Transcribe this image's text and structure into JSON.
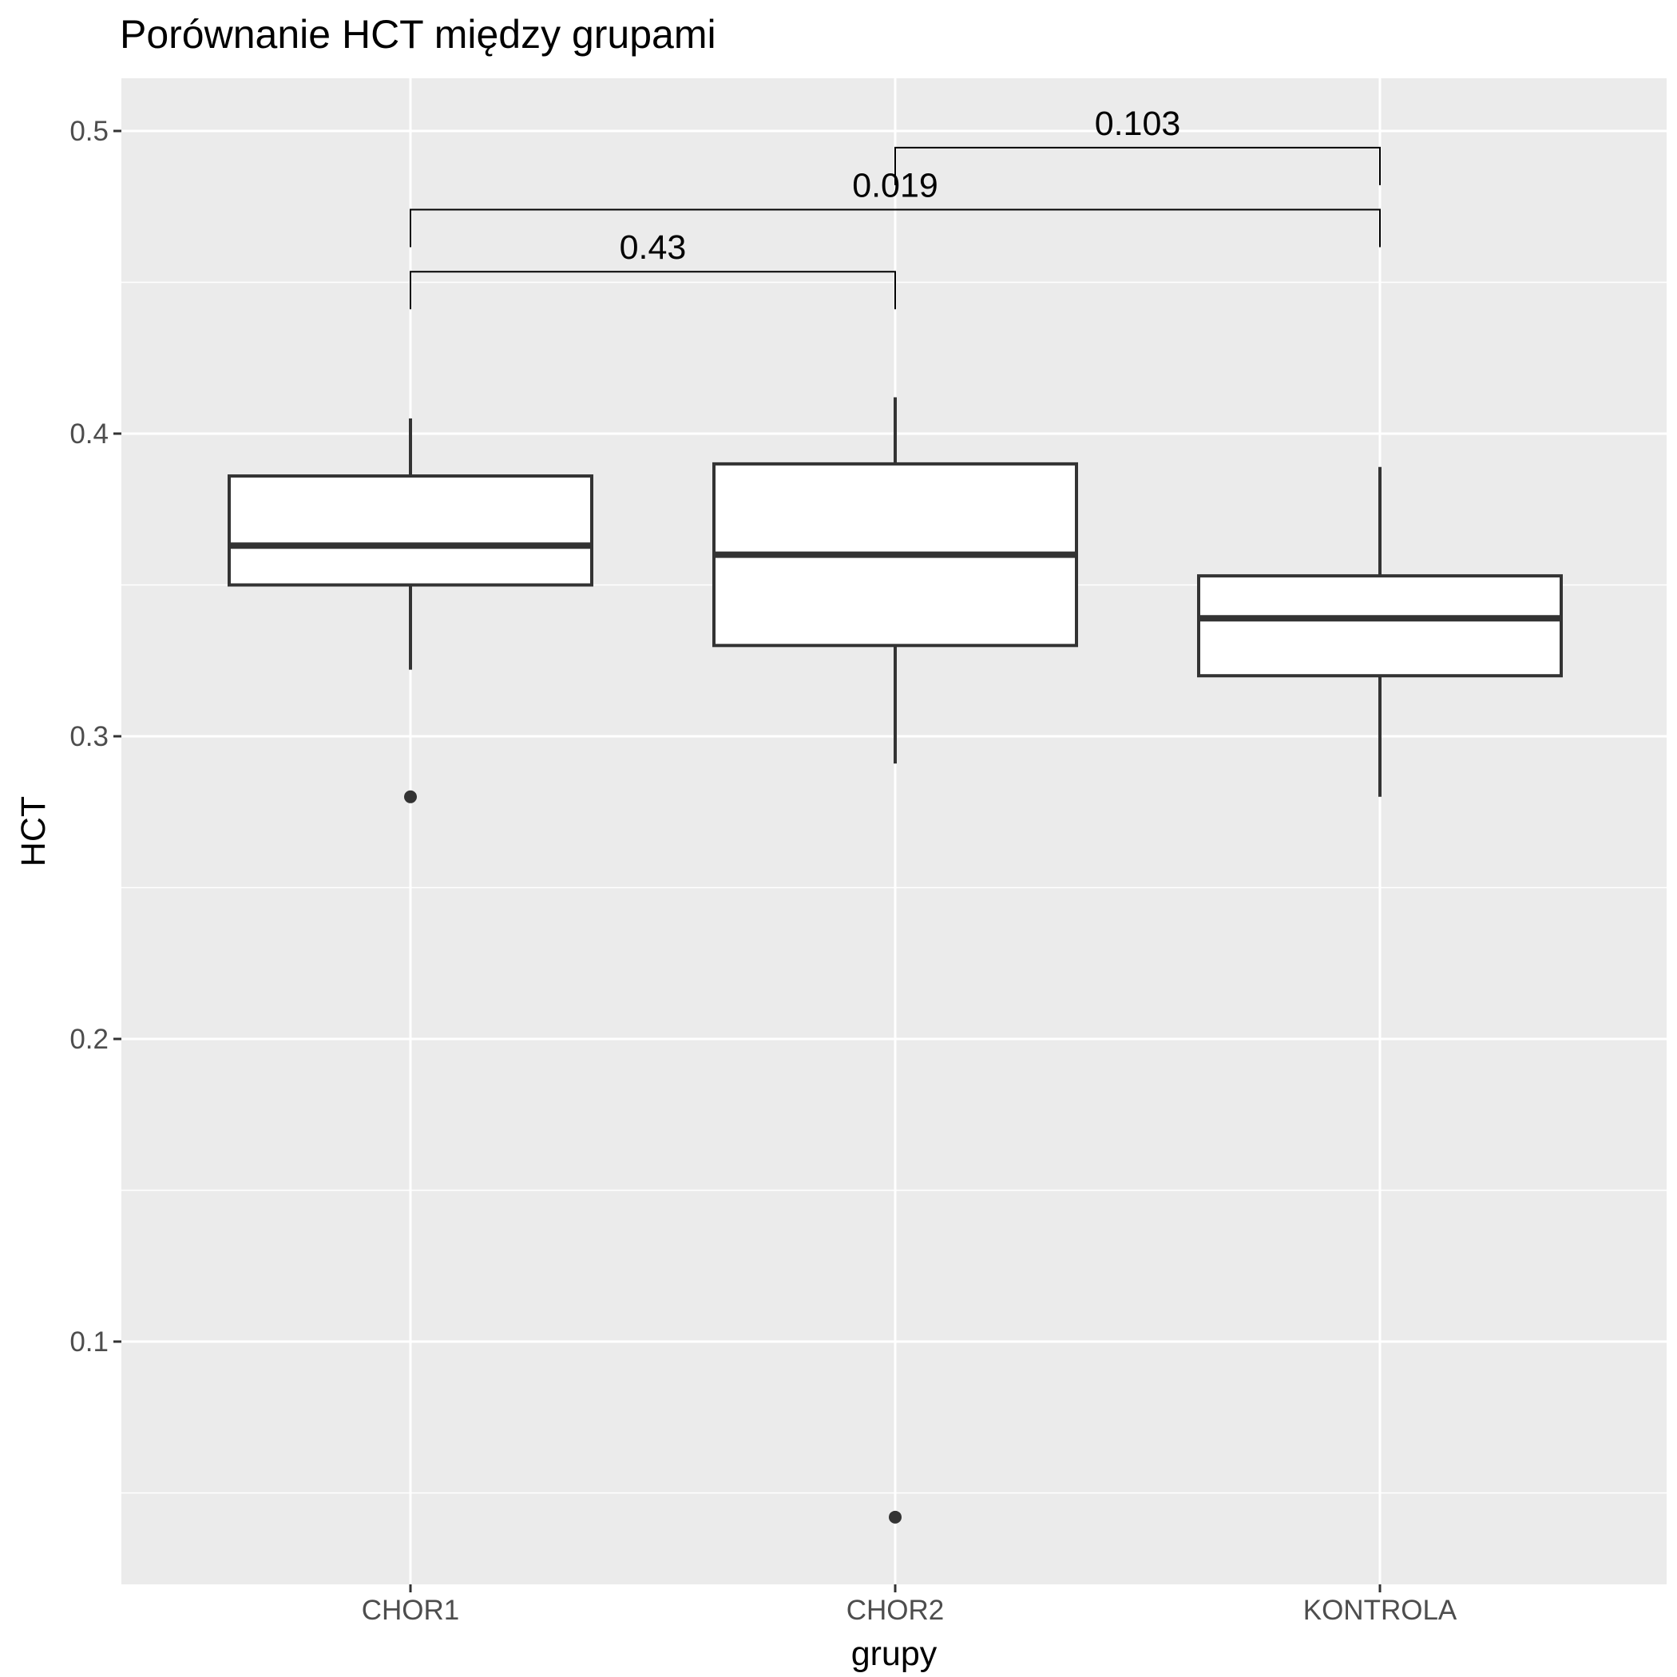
{
  "chart_data": {
    "type": "boxplot",
    "title": "Porównanie HCT między grupami",
    "xlabel": "grupy",
    "ylabel": "HCT",
    "categories": [
      "CHOR1",
      "CHOR2",
      "KONTROLA"
    ],
    "yticks": [
      "0.1",
      "0.2",
      "0.3",
      "0.4",
      "0.5"
    ],
    "ylim": [
      0.02,
      0.518
    ],
    "grid": true,
    "boxes": [
      {
        "group": "CHOR1",
        "whisker_low": 0.322,
        "q1": 0.35,
        "median": 0.363,
        "q3": 0.386,
        "whisker_high": 0.405,
        "outliers": [
          0.28
        ]
      },
      {
        "group": "CHOR2",
        "whisker_low": 0.291,
        "q1": 0.33,
        "median": 0.36,
        "q3": 0.39,
        "whisker_high": 0.412,
        "outliers": [
          0.042
        ]
      },
      {
        "group": "KONTROLA",
        "whisker_low": 0.28,
        "q1": 0.32,
        "median": 0.339,
        "q3": 0.353,
        "whisker_high": 0.389,
        "outliers": []
      }
    ],
    "comparisons": [
      {
        "from": "CHOR1",
        "to": "CHOR2",
        "y": 0.4535,
        "label": "0.43"
      },
      {
        "from": "CHOR1",
        "to": "KONTROLA",
        "y": 0.474,
        "label": "0.019"
      },
      {
        "from": "CHOR2",
        "to": "KONTROLA",
        "y": 0.4945,
        "label": "0.103"
      }
    ],
    "colors": {
      "panel": "#ebebeb",
      "grid": "#ffffff",
      "box_fill": "#ffffff",
      "box_line": "#333333"
    }
  }
}
